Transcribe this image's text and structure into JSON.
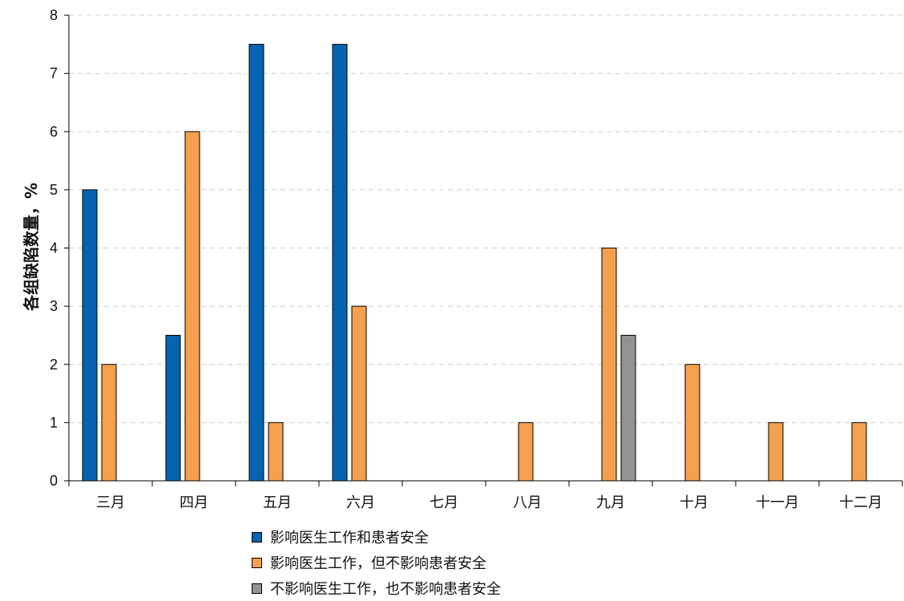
{
  "chart_data": {
    "type": "bar",
    "ylabel": "各组缺陷数量，%",
    "xlabel": "",
    "ylim": [
      0,
      8
    ],
    "yticks": [
      0,
      1,
      2,
      3,
      4,
      5,
      6,
      7,
      8
    ],
    "grid": "horizontal dashed",
    "legend_position": "bottom",
    "categories": [
      "三月",
      "四月",
      "五月",
      "六月",
      "七月",
      "八月",
      "九月",
      "十月",
      "十一月",
      "十二月"
    ],
    "series": [
      {
        "name": "影响医生工作和患者安全",
        "color": "#0563B0",
        "values": [
          5,
          2.5,
          7.5,
          7.5,
          0,
          0,
          0,
          0,
          0,
          0
        ]
      },
      {
        "name": "影响医生工作，但不影响患者安全",
        "color": "#F5A04E",
        "values": [
          2,
          6,
          1,
          3,
          0,
          1,
          4,
          2,
          1,
          1
        ]
      },
      {
        "name": "不影响医生工作，也不影响患者安全",
        "color": "#939393",
        "values": [
          0,
          0,
          0,
          0,
          0,
          0,
          2.5,
          0,
          0,
          0
        ]
      }
    ]
  }
}
